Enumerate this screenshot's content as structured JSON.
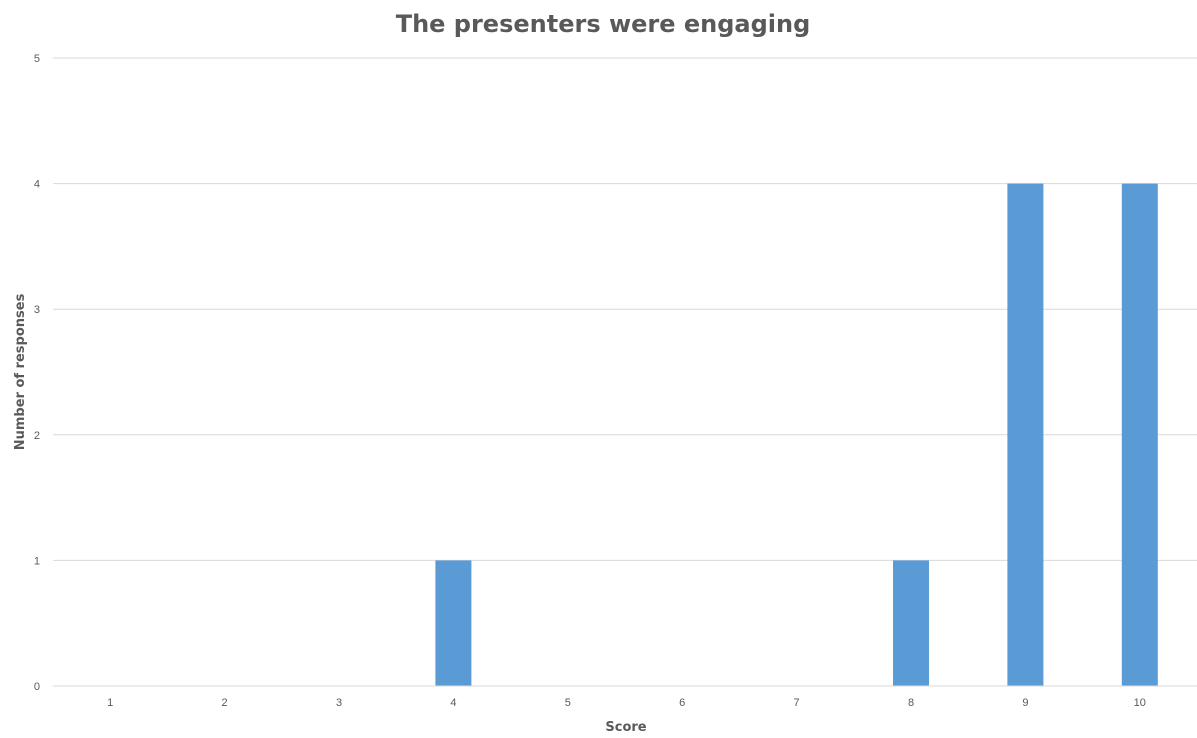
{
  "chart_data": {
    "type": "bar",
    "title": "The presenters were engaging",
    "xlabel": "Score",
    "ylabel": "Number of responses",
    "categories": [
      "1",
      "2",
      "3",
      "4",
      "5",
      "6",
      "7",
      "8",
      "9",
      "10"
    ],
    "values": [
      0,
      0,
      0,
      1,
      0,
      0,
      0,
      1,
      4,
      4
    ],
    "ylim": [
      0,
      5
    ],
    "yticks": [
      0,
      1,
      2,
      3,
      4,
      5
    ],
    "grid": true,
    "legend": "none",
    "bar_color": "#5B9BD5"
  }
}
